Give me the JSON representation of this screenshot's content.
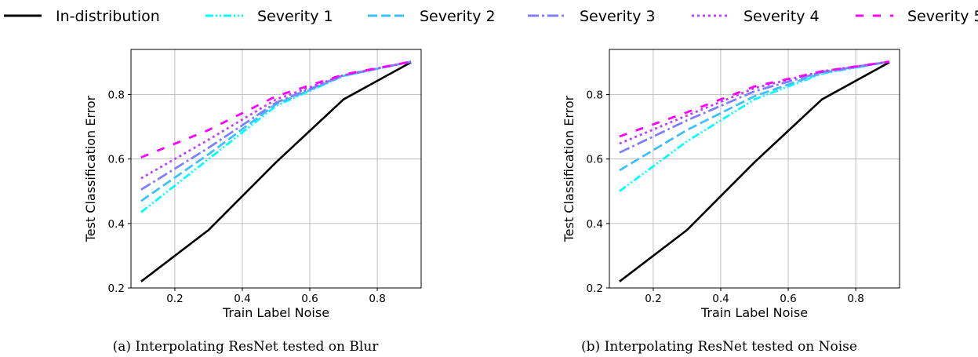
{
  "legend": {
    "entries": [
      {
        "label": "In-distribution",
        "color": "#000000",
        "dash": "solid"
      },
      {
        "label": "Severity 1",
        "color": "#00ffff",
        "dash": "dashdotdot"
      },
      {
        "label": "Severity 2",
        "color": "#40bfff",
        "dash": "dashed"
      },
      {
        "label": "Severity 3",
        "color": "#8080ff",
        "dash": "dashdot"
      },
      {
        "label": "Severity 4",
        "color": "#bf40ff",
        "dash": "dotted"
      },
      {
        "label": "Severity 5",
        "color": "#ff00ff",
        "dash": "loosedash"
      }
    ]
  },
  "chart_data": [
    {
      "type": "line",
      "caption": "(a) Interpolating ResNet tested on Blur",
      "xlabel": "Train Label Noise",
      "ylabel": "Test Classification Error",
      "xlim": [
        0.07,
        0.93
      ],
      "ylim": [
        0.2,
        0.94
      ],
      "xticks": [
        "0.2",
        "0.4",
        "0.6",
        "0.8"
      ],
      "yticks": [
        "0.2",
        "0.4",
        "0.6",
        "0.8"
      ],
      "grid": true,
      "legend_position": "top",
      "x": [
        0.1,
        0.3,
        0.5,
        0.7,
        0.9
      ],
      "series": [
        {
          "name": "In-distribution",
          "values": [
            0.22,
            0.38,
            0.59,
            0.785,
            0.9
          ]
        },
        {
          "name": "Severity 1",
          "values": [
            0.435,
            0.6,
            0.765,
            0.858,
            0.902
          ]
        },
        {
          "name": "Severity 2",
          "values": [
            0.47,
            0.615,
            0.77,
            0.858,
            0.902
          ]
        },
        {
          "name": "Severity 3",
          "values": [
            0.505,
            0.635,
            0.775,
            0.86,
            0.902
          ]
        },
        {
          "name": "Severity 4",
          "values": [
            0.54,
            0.66,
            0.785,
            0.86,
            0.902
          ]
        },
        {
          "name": "Severity 5",
          "values": [
            0.605,
            0.69,
            0.795,
            0.862,
            0.902
          ]
        }
      ]
    },
    {
      "type": "line",
      "caption": "(b) Interpolating ResNet tested on Noise",
      "xlabel": "Train Label Noise",
      "ylabel": "Test Classification Error",
      "xlim": [
        0.07,
        0.93
      ],
      "ylim": [
        0.2,
        0.94
      ],
      "xticks": [
        "0.2",
        "0.4",
        "0.6",
        "0.8"
      ],
      "yticks": [
        "0.2",
        "0.4",
        "0.6",
        "0.8"
      ],
      "grid": true,
      "legend_position": "top",
      "x": [
        0.1,
        0.3,
        0.5,
        0.7,
        0.9
      ],
      "series": [
        {
          "name": "In-distribution",
          "values": [
            0.22,
            0.38,
            0.59,
            0.785,
            0.9
          ]
        },
        {
          "name": "Severity 1",
          "values": [
            0.5,
            0.655,
            0.785,
            0.865,
            0.902
          ]
        },
        {
          "name": "Severity 2",
          "values": [
            0.565,
            0.69,
            0.795,
            0.867,
            0.902
          ]
        },
        {
          "name": "Severity 3",
          "values": [
            0.62,
            0.72,
            0.81,
            0.87,
            0.902
          ]
        },
        {
          "name": "Severity 4",
          "values": [
            0.648,
            0.735,
            0.82,
            0.872,
            0.902
          ]
        },
        {
          "name": "Severity 5",
          "values": [
            0.67,
            0.745,
            0.825,
            0.872,
            0.902
          ]
        }
      ]
    }
  ]
}
